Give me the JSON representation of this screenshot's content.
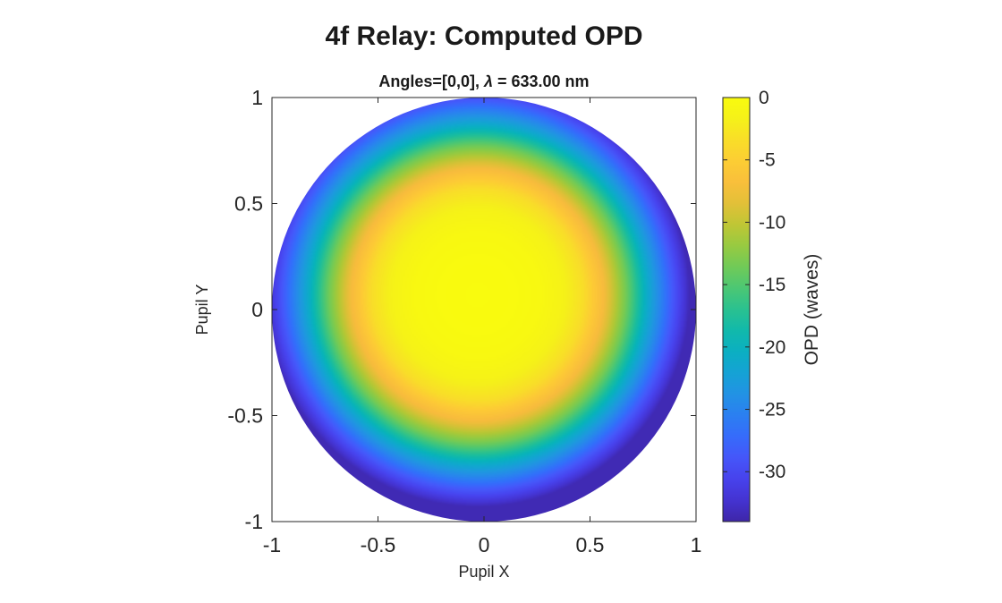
{
  "figure_title": "4f Relay: Computed OPD",
  "chart_data": {
    "type": "heatmap",
    "title": "Angles=[0,0], λ = 633.00 nm",
    "title_parts": {
      "prefix": "Angles=[0,0], ",
      "symbol": "λ",
      "suffix": " = 633.00 nm"
    },
    "xlabel": "Pupil X",
    "ylabel": "Pupil Y",
    "xlim": [
      -1,
      1
    ],
    "ylim": [
      -1,
      1
    ],
    "xticks": [
      -1,
      -0.5,
      0,
      0.5,
      1
    ],
    "xtick_labels": [
      "-1",
      "-0.5",
      "0",
      "0.5",
      "1"
    ],
    "yticks": [
      -1,
      -0.5,
      0,
      0.5,
      1
    ],
    "ytick_labels": [
      "-1",
      "-0.5",
      "0",
      "0.5",
      "1"
    ],
    "aperture": "circular",
    "aperture_radius": 1,
    "grid": false,
    "colormap": "parula",
    "colorbar": {
      "label": "OPD (waves)",
      "range": [
        -34,
        0
      ],
      "ticks": [
        0,
        -5,
        -10,
        -15,
        -20,
        -25,
        -30
      ],
      "tick_labels": [
        "0",
        "-5",
        "-10",
        "-15",
        "-20",
        "-25",
        "-30"
      ]
    },
    "surface": {
      "description": "OPD vs pupil radius (radially symmetric, slightly offset center)",
      "center": [
        -0.03,
        0.07
      ],
      "radius_samples": [
        0,
        0.1,
        0.2,
        0.3,
        0.4,
        0.5,
        0.6,
        0.7,
        0.8,
        0.9,
        1.0
      ],
      "opd_samples": [
        0,
        -0.05,
        -0.2,
        -0.5,
        -1.4,
        -3.5,
        -7.5,
        -13.5,
        -21,
        -27.5,
        -33.5
      ]
    }
  }
}
